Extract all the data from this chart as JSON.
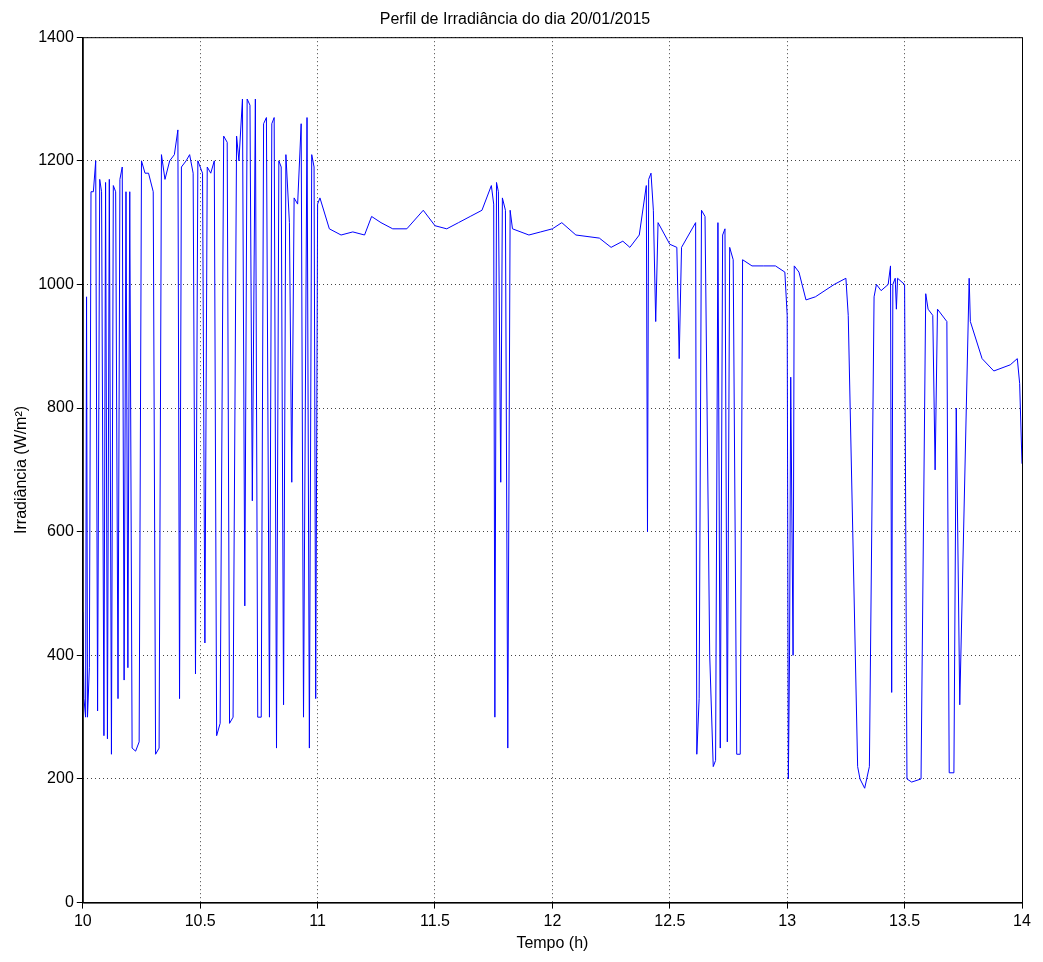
{
  "chart_data": {
    "type": "line",
    "title": "Perfil de Irradiância do dia 20/01/2015",
    "xlabel": "Tempo (h)",
    "ylabel": "Irradiância (W/m²)",
    "xlim": [
      10,
      14
    ],
    "xticks": [
      10,
      10.5,
      11,
      11.5,
      12,
      12.5,
      13,
      13.5,
      14
    ],
    "ylim": [
      0,
      1400
    ],
    "yticks": [
      0,
      200,
      400,
      600,
      800,
      1000,
      1200,
      1400
    ],
    "grid": true,
    "line_style": "solid",
    "marker": "none",
    "series": [
      {
        "color": "#0000ff",
        "x": [
          10,
          10.005,
          10.012,
          10.016,
          10.02,
          10.028,
          10.035,
          10.045,
          10.055,
          10.063,
          10.072,
          10.08,
          10.09,
          10.097,
          10.105,
          10.113,
          10.122,
          10.13,
          10.14,
          10.15,
          10.158,
          10.168,
          10.176,
          10.184,
          10.192,
          10.2,
          10.21,
          10.225,
          10.24,
          10.25,
          10.265,
          10.28,
          10.3,
          10.31,
          10.325,
          10.335,
          10.35,
          10.37,
          10.39,
          10.405,
          10.412,
          10.42,
          10.44,
          10.455,
          10.47,
          10.48,
          10.49,
          10.51,
          10.52,
          10.53,
          10.545,
          10.56,
          10.57,
          10.585,
          10.6,
          10.615,
          10.625,
          10.64,
          10.655,
          10.665,
          10.68,
          10.69,
          10.7,
          10.712,
          10.722,
          10.735,
          10.745,
          10.76,
          10.77,
          10.782,
          10.795,
          10.805,
          10.815,
          10.825,
          10.835,
          10.845,
          10.855,
          10.865,
          10.88,
          10.89,
          10.9,
          10.915,
          10.93,
          10.94,
          10.955,
          10.965,
          10.975,
          10.985,
          10.992,
          11,
          11.01,
          11.05,
          11.1,
          11.15,
          11.2,
          11.23,
          11.27,
          11.32,
          11.38,
          11.45,
          11.5,
          11.55,
          11.6,
          11.65,
          11.7,
          11.74,
          11.75,
          11.755,
          11.762,
          11.77,
          11.78,
          11.787,
          11.8,
          11.81,
          11.82,
          11.83,
          11.9,
          11.95,
          12,
          12.04,
          12.1,
          12.2,
          12.25,
          12.3,
          12.33,
          12.37,
          12.4,
          12.405,
          12.41,
          12.42,
          12.43,
          12.44,
          12.45,
          12.5,
          12.53,
          12.54,
          12.55,
          12.58,
          12.61,
          12.615,
          12.625,
          12.635,
          12.65,
          12.67,
          12.685,
          12.695,
          12.705,
          12.715,
          12.725,
          12.735,
          12.745,
          12.755,
          12.77,
          12.785,
          12.8,
          12.81,
          12.85,
          12.9,
          12.95,
          12.99,
          13,
          13.005,
          13.01,
          13.015,
          13.025,
          13.03,
          13.05,
          13.08,
          13.12,
          13.2,
          13.25,
          13.26,
          13.3,
          13.31,
          13.33,
          13.35,
          13.37,
          13.38,
          13.4,
          13.43,
          13.44,
          13.445,
          13.45,
          13.46,
          13.465,
          13.47,
          13.5,
          13.51,
          13.53,
          13.57,
          13.59,
          13.6,
          13.62,
          13.63,
          13.64,
          13.68,
          13.69,
          13.71,
          13.72,
          13.735,
          13.775,
          13.78,
          13.83,
          13.88,
          13.95,
          13.98,
          13.99,
          14
        ],
        "values": [
          470,
          330,
          300,
          980,
          300,
          380,
          1150,
          1150,
          1200,
          310,
          1170,
          1150,
          270,
          1165,
          265,
          1170,
          240,
          1160,
          1150,
          330,
          1170,
          1190,
          360,
          1150,
          380,
          1150,
          250,
          245,
          260,
          1200,
          1180,
          1180,
          1150,
          240,
          250,
          1210,
          1170,
          1200,
          1210,
          1250,
          330,
          1190,
          1200,
          1210,
          1180,
          370,
          1200,
          1180,
          420,
          1190,
          1180,
          1200,
          270,
          290,
          1240,
          1230,
          290,
          300,
          1240,
          1200,
          1300,
          480,
          1300,
          1290,
          650,
          1300,
          300,
          300,
          1260,
          1270,
          300,
          1260,
          1270,
          250,
          1200,
          1190,
          320,
          1210,
          1100,
          680,
          1140,
          1130,
          1260,
          300,
          1270,
          250,
          1210,
          1190,
          330,
          1130,
          1140,
          1090,
          1080,
          1085,
          1080,
          1110,
          1100,
          1090,
          1090,
          1120,
          1095,
          1090,
          1100,
          1110,
          1120,
          1160,
          1130,
          300,
          1165,
          1150,
          680,
          1140,
          1120,
          250,
          1120,
          1090,
          1080,
          1085,
          1090,
          1100,
          1080,
          1075,
          1060,
          1070,
          1060,
          1080,
          1160,
          600,
          1170,
          1180,
          1120,
          940,
          1100,
          1065,
          1060,
          880,
          1060,
          1080,
          1100,
          240,
          330,
          1120,
          1110,
          400,
          220,
          230,
          1100,
          250,
          1080,
          1090,
          260,
          1060,
          1040,
          240,
          240,
          1040,
          1030,
          1030,
          1030,
          1020,
          950,
          200,
          400,
          850,
          400,
          1030,
          1020,
          975,
          980,
          1000,
          1010,
          950,
          220,
          200,
          185,
          220,
          980,
          1000,
          990,
          1000,
          1030,
          340,
          1000,
          1010,
          960,
          1010,
          1000,
          200,
          195,
          200,
          985,
          960,
          950,
          700,
          960,
          940,
          210,
          210,
          800,
          320,
          1010,
          940,
          880,
          860,
          870,
          880,
          840,
          710
        ]
      }
    ]
  }
}
